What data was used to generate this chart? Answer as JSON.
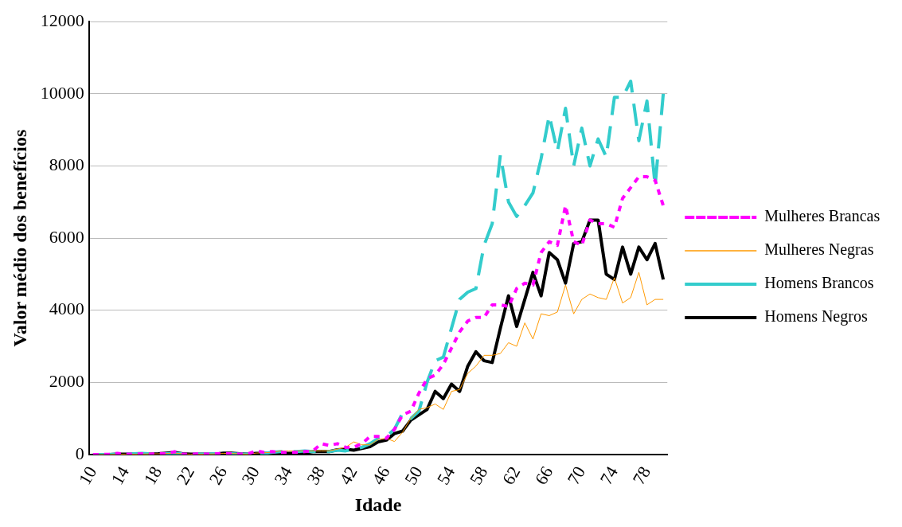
{
  "chart_data": {
    "type": "line",
    "xlabel": "Idade",
    "ylabel": "Valor médio dos benefícios",
    "categories": [
      "10",
      null,
      null,
      null,
      "14",
      null,
      null,
      null,
      "18",
      null,
      null,
      null,
      "22",
      null,
      null,
      null,
      "26",
      null,
      null,
      null,
      "30",
      null,
      null,
      null,
      "34",
      null,
      null,
      null,
      "38",
      null,
      null,
      null,
      "42",
      null,
      null,
      null,
      "46",
      null,
      null,
      null,
      "50",
      null,
      null,
      null,
      "54",
      null,
      null,
      null,
      "58",
      null,
      null,
      null,
      "62",
      null,
      null,
      null,
      "66",
      null,
      null,
      null,
      "70",
      null,
      null,
      null,
      "74",
      null,
      null,
      null,
      "78",
      null,
      null
    ],
    "series": [
      {
        "name": "Mulheres Brancas",
        "color": "#ff00ff",
        "line_style": "dotted",
        "values": [
          0,
          0,
          10,
          30,
          10,
          10,
          20,
          10,
          30,
          20,
          80,
          10,
          10,
          20,
          10,
          20,
          30,
          20,
          10,
          20,
          100,
          60,
          80,
          60,
          60,
          60,
          80,
          100,
          300,
          250,
          300,
          200,
          200,
          300,
          500,
          500,
          450,
          700,
          1100,
          1200,
          1700,
          2100,
          2200,
          2500,
          2950,
          3400,
          3700,
          3800,
          3800,
          4150,
          4150,
          4100,
          4600,
          4750,
          4700,
          5600,
          5900,
          5800,
          6900,
          5900,
          5800,
          6500,
          6400,
          6400,
          6300,
          7100,
          7400,
          7700,
          7700,
          7600,
          6900
        ]
      },
      {
        "name": "Mulheres Negras",
        "color": "#ff9900",
        "line_style": "solid",
        "values": [
          0,
          0,
          0,
          10,
          10,
          10,
          10,
          20,
          20,
          30,
          40,
          20,
          10,
          10,
          10,
          20,
          30,
          30,
          20,
          10,
          40,
          50,
          60,
          100,
          100,
          100,
          100,
          100,
          100,
          100,
          150,
          200,
          350,
          270,
          270,
          420,
          450,
          360,
          620,
          1000,
          1250,
          1300,
          1400,
          1250,
          1750,
          1800,
          2250,
          2450,
          2750,
          2750,
          2800,
          3100,
          3000,
          3650,
          3200,
          3900,
          3850,
          3950,
          4700,
          3900,
          4300,
          4450,
          4350,
          4300,
          4900,
          4200,
          4350,
          5050,
          4150,
          4300,
          4300
        ]
      },
      {
        "name": "Homens Brancos",
        "color": "#33cccc",
        "line_style": "dashed",
        "values": [
          0,
          0,
          0,
          10,
          10,
          20,
          30,
          20,
          10,
          20,
          30,
          20,
          10,
          10,
          10,
          20,
          20,
          20,
          10,
          10,
          20,
          30,
          60,
          80,
          80,
          80,
          100,
          80,
          80,
          80,
          120,
          100,
          150,
          200,
          300,
          450,
          500,
          700,
          1150,
          1000,
          1200,
          2000,
          2600,
          2700,
          3500,
          4300,
          4500,
          4600,
          5800,
          6400,
          8300,
          7000,
          6600,
          6900,
          7250,
          8200,
          9400,
          8400,
          9600,
          8000,
          9050,
          8000,
          8750,
          8250,
          9900,
          9900,
          10350,
          8700,
          9800,
          7450,
          10000
        ]
      },
      {
        "name": "Homens Negros",
        "color": "#000000",
        "line_style": "solid",
        "values": [
          0,
          0,
          0,
          10,
          10,
          10,
          10,
          10,
          20,
          40,
          60,
          20,
          10,
          10,
          10,
          10,
          40,
          40,
          20,
          10,
          30,
          30,
          30,
          30,
          30,
          30,
          50,
          80,
          80,
          80,
          130,
          150,
          120,
          170,
          220,
          350,
          400,
          580,
          650,
          950,
          1100,
          1250,
          1750,
          1550,
          1950,
          1750,
          2450,
          2850,
          2600,
          2550,
          3500,
          4400,
          3550,
          4300,
          5050,
          4400,
          5600,
          5400,
          4750,
          5850,
          5900,
          6500,
          6500,
          5000,
          4850,
          5750,
          5000,
          5750,
          5400,
          5850,
          4850
        ]
      }
    ],
    "ylim": [
      0,
      12000
    ],
    "yticks": [
      0,
      2000,
      4000,
      6000,
      8000,
      10000,
      12000
    ],
    "grid": "y",
    "legend": "right",
    "marker": "none"
  }
}
